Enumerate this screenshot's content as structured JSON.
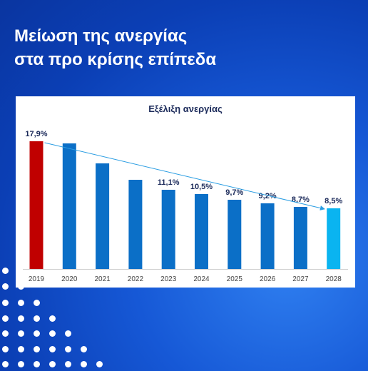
{
  "headline": {
    "line1": "Μείωση της ανεργίας",
    "line2": "στα προ κρίσης επίπεδα"
  },
  "colors": {
    "highlight_2019": "#c00000",
    "bars": "#0b6fc7",
    "bar_2028": "#0ab4f0",
    "trend_arrow": "#2a9de2",
    "label_text": "#1b2a5a"
  },
  "chart_data": {
    "type": "bar",
    "title": "Εξέλιξη ανεργίας",
    "xlabel": "",
    "ylabel": "",
    "unit": "%",
    "categories": [
      "2019",
      "2020",
      "2021",
      "2022",
      "2023",
      "2024",
      "2025",
      "2026",
      "2027",
      "2028"
    ],
    "values": [
      17.9,
      17.6,
      14.8,
      12.5,
      11.1,
      10.5,
      9.7,
      9.2,
      8.7,
      8.5
    ],
    "data_labels": [
      "17,9%",
      "",
      "",
      "",
      "11,1%",
      "10,5%",
      "9,7%",
      "9,2%",
      "8,7%",
      "8,5%"
    ],
    "ylim": [
      0,
      18.5
    ],
    "grid": false,
    "legend": "none",
    "trend_arrow": {
      "from": "2019",
      "to": "2028"
    }
  }
}
